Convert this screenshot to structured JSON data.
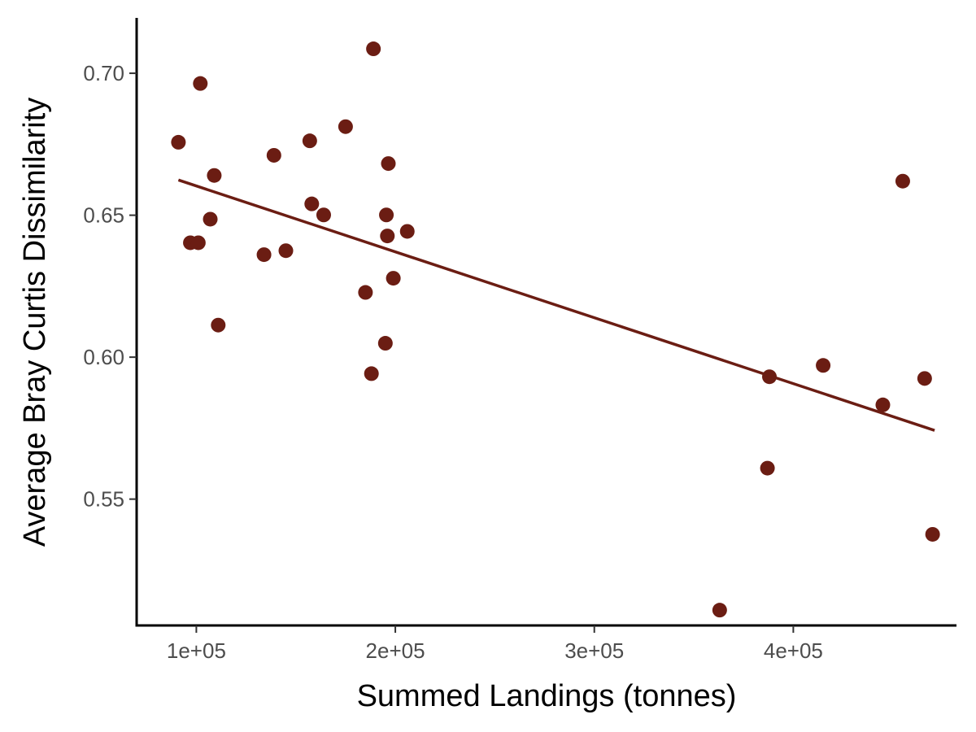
{
  "chart_data": {
    "type": "scatter",
    "title": "",
    "xlabel": "Summed Landings (tonnes)",
    "ylabel": "Average Bray Curtis Dissimilarity",
    "xlim": [
      70000,
      482000
    ],
    "ylim": [
      0.5055,
      0.7195
    ],
    "x_ticks": [
      100000,
      200000,
      300000,
      400000
    ],
    "x_tick_labels": [
      "1e+05",
      "2e+05",
      "3e+05",
      "4e+05"
    ],
    "y_ticks": [
      0.55,
      0.6,
      0.65,
      0.7
    ],
    "y_tick_labels": [
      "0.55",
      "0.60",
      "0.65",
      "0.70"
    ],
    "grid": false,
    "legend": "none",
    "point_color": "#6b1d13",
    "line_color": "#6b1d13",
    "points": [
      {
        "x": 91000,
        "y": 0.6757
      },
      {
        "x": 97000,
        "y": 0.6403
      },
      {
        "x": 101000,
        "y": 0.6403
      },
      {
        "x": 102000,
        "y": 0.6964
      },
      {
        "x": 107000,
        "y": 0.6486
      },
      {
        "x": 109000,
        "y": 0.664
      },
      {
        "x": 111000,
        "y": 0.6113
      },
      {
        "x": 134000,
        "y": 0.6361
      },
      {
        "x": 139000,
        "y": 0.6711
      },
      {
        "x": 145000,
        "y": 0.6375
      },
      {
        "x": 157000,
        "y": 0.6762
      },
      {
        "x": 158000,
        "y": 0.654
      },
      {
        "x": 164000,
        "y": 0.6501
      },
      {
        "x": 175000,
        "y": 0.6812
      },
      {
        "x": 185000,
        "y": 0.6228
      },
      {
        "x": 188000,
        "y": 0.5942
      },
      {
        "x": 189000,
        "y": 0.7086
      },
      {
        "x": 195000,
        "y": 0.6049
      },
      {
        "x": 195500,
        "y": 0.6501
      },
      {
        "x": 196000,
        "y": 0.6427
      },
      {
        "x": 196500,
        "y": 0.6682
      },
      {
        "x": 199000,
        "y": 0.6278
      },
      {
        "x": 206000,
        "y": 0.6443
      },
      {
        "x": 363000,
        "y": 0.5109
      },
      {
        "x": 387000,
        "y": 0.5609
      },
      {
        "x": 388000,
        "y": 0.5931
      },
      {
        "x": 415000,
        "y": 0.5971
      },
      {
        "x": 445000,
        "y": 0.5832
      },
      {
        "x": 455000,
        "y": 0.662
      },
      {
        "x": 466000,
        "y": 0.5925
      },
      {
        "x": 470000,
        "y": 0.5376
      }
    ],
    "trend_line": {
      "x": [
        91000,
        471000
      ],
      "y": [
        0.6624,
        0.5742
      ]
    }
  }
}
